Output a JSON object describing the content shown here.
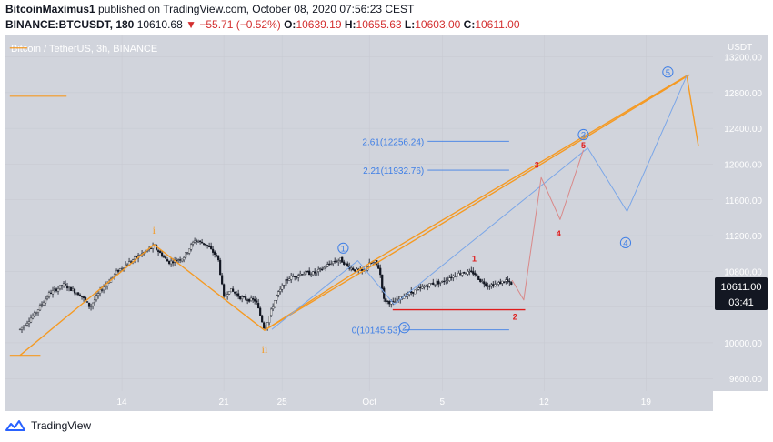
{
  "header": {
    "author": "BitcoinMaximus1",
    "published_text": "published on TradingView.com, October 08, 2020 07:56:23 CEST",
    "symbol": "BINANCE:BTCUSDT, 180",
    "last": "10610.68",
    "change": "−55.71 (−0.52%)",
    "o_label": "O:",
    "o_value": "10639.19",
    "h_label": "H:",
    "h_value": "10655.63",
    "l_label": "L:",
    "l_value": "10603.00",
    "c_label": "C:",
    "c_value": "10611.00"
  },
  "chart_data": {
    "type": "candlestick",
    "title": "Bitcoin / TetherUS, 3h, BINANCE",
    "currency": "USDT",
    "y_ticks": [
      9600,
      10000,
      10400,
      10800,
      11200,
      11600,
      12000,
      12400,
      12800,
      13200
    ],
    "y_tick_labels": [
      "9600.00",
      "10000.00",
      "",
      "10800.00",
      "11200.00",
      "11600.00",
      "12000.00",
      "12400.00",
      "12800.00",
      "13200.00"
    ],
    "ylim": [
      9460,
      13450
    ],
    "x_ticks": [
      {
        "label": "14",
        "day": 14
      },
      {
        "label": "21",
        "day": 21
      },
      {
        "label": "25",
        "day": 25
      },
      {
        "label": "Oct",
        "day": 31
      },
      {
        "label": "5",
        "day": 36
      },
      {
        "label": "12",
        "day": 43
      },
      {
        "label": "19",
        "day": 50
      }
    ],
    "price_label": "10611.00",
    "countdown": "03:41",
    "colors": {
      "background": "#d1d4dc",
      "orange": "#f59a23",
      "blue": "#3f7fe6",
      "blue_light": "#7aa6e8",
      "red": "#e01c1c",
      "red_light": "#d98888",
      "candle": "#131722"
    },
    "candle_anchors": [
      [
        7.0,
        10150
      ],
      [
        8.0,
        10320
      ],
      [
        9.0,
        10550
      ],
      [
        10.0,
        10650
      ],
      [
        11.2,
        10530
      ],
      [
        11.8,
        10400
      ],
      [
        12.6,
        10600
      ],
      [
        13.8,
        10820
      ],
      [
        15.2,
        10980
      ],
      [
        16.2,
        11080
      ],
      [
        17.2,
        10900
      ],
      [
        18.2,
        10950
      ],
      [
        19.0,
        11150
      ],
      [
        19.8,
        11100
      ],
      [
        20.6,
        10950
      ],
      [
        21.0,
        10500
      ],
      [
        21.4,
        10600
      ],
      [
        22.2,
        10500
      ],
      [
        23.2,
        10470
      ],
      [
        23.8,
        10150
      ],
      [
        24.6,
        10520
      ],
      [
        25.4,
        10720
      ],
      [
        26.4,
        10780
      ],
      [
        27.2,
        10780
      ],
      [
        27.8,
        10830
      ],
      [
        28.4,
        10900
      ],
      [
        29.0,
        10930
      ],
      [
        29.6,
        10850
      ],
      [
        30.2,
        10800
      ],
      [
        30.6,
        10800
      ],
      [
        31.0,
        10880
      ],
      [
        31.4,
        10900
      ],
      [
        31.7,
        10820
      ],
      [
        32.0,
        10480
      ],
      [
        32.6,
        10440
      ],
      [
        33.4,
        10530
      ],
      [
        34.4,
        10600
      ],
      [
        35.2,
        10660
      ],
      [
        36.0,
        10680
      ],
      [
        36.6,
        10740
      ],
      [
        37.4,
        10790
      ],
      [
        38.2,
        10780
      ],
      [
        38.6,
        10700
      ],
      [
        39.2,
        10640
      ],
      [
        39.8,
        10660
      ],
      [
        40.4,
        10700
      ],
      [
        40.8,
        10640
      ]
    ],
    "wave_labels": [
      {
        "text": "i",
        "day": 16.2,
        "price": 11260,
        "color": "orange",
        "style": "roman"
      },
      {
        "text": "ii",
        "day": 23.8,
        "price": 9930,
        "color": "orange",
        "style": "roman"
      },
      {
        "text": "iii",
        "day": 51.5,
        "price": 13480,
        "color": "orange",
        "style": "roman"
      },
      {
        "text": "1",
        "day": 29.2,
        "price": 11060,
        "color": "blue",
        "style": "circle"
      },
      {
        "text": "2",
        "day": 33.4,
        "price": 10170,
        "color": "blue",
        "style": "circle"
      },
      {
        "text": "3",
        "day": 45.7,
        "price": 12330,
        "color": "blue",
        "style": "circle"
      },
      {
        "text": "4",
        "day": 48.6,
        "price": 11120,
        "color": "blue",
        "style": "circle"
      },
      {
        "text": "5",
        "day": 51.5,
        "price": 13030,
        "color": "blue",
        "style": "circle"
      },
      {
        "text": "1",
        "day": 38.2,
        "price": 10940,
        "color": "red",
        "style": "plain"
      },
      {
        "text": "2",
        "day": 41.0,
        "price": 10290,
        "color": "red",
        "style": "plain"
      },
      {
        "text": "3",
        "day": 42.5,
        "price": 11990,
        "color": "red",
        "style": "plain"
      },
      {
        "text": "4",
        "day": 44.0,
        "price": 11220,
        "color": "red",
        "style": "plain"
      },
      {
        "text": "5",
        "day": 45.7,
        "price": 12210,
        "color": "red",
        "style": "plain"
      }
    ],
    "fib_levels": [
      {
        "label": "2.61(12256.24)",
        "price": 12256.24,
        "from_day": 35.0,
        "to_day": 40.6
      },
      {
        "label": "2.21(11932.76)",
        "price": 11932.76,
        "from_day": 35.0,
        "to_day": 40.6
      },
      {
        "label": "0(10145.53)",
        "price": 10145.53,
        "from_day": 33.4,
        "to_day": 40.6
      }
    ],
    "orange_wave": [
      [
        7.0,
        9860
      ],
      [
        16.2,
        11100
      ],
      [
        23.8,
        10140
      ],
      [
        31.2,
        10910
      ],
      [
        52.8,
        12990
      ],
      [
        53.6,
        12200
      ]
    ],
    "orange_trend_upper": [
      [
        23.8,
        10140
      ],
      [
        53.0,
        13000
      ]
    ],
    "orange_ticks": [
      [
        6.3,
        7.5,
        13300
      ],
      [
        6.3,
        10.2,
        12760
      ],
      [
        6.3,
        8.4,
        9860
      ]
    ],
    "blue_wave": [
      [
        24.3,
        10150
      ],
      [
        30.2,
        10920
      ],
      [
        32.7,
        10430
      ],
      [
        46.0,
        12180
      ],
      [
        48.7,
        11470
      ],
      [
        52.8,
        12990
      ]
    ],
    "red_wave": [
      [
        40.8,
        10700
      ],
      [
        41.6,
        10480
      ],
      [
        42.8,
        11850
      ],
      [
        44.1,
        11380
      ],
      [
        45.7,
        12160
      ]
    ],
    "red_support": [
      [
        32.6,
        41.7,
        10370
      ]
    ]
  },
  "footer": {
    "brand": "TradingView"
  }
}
